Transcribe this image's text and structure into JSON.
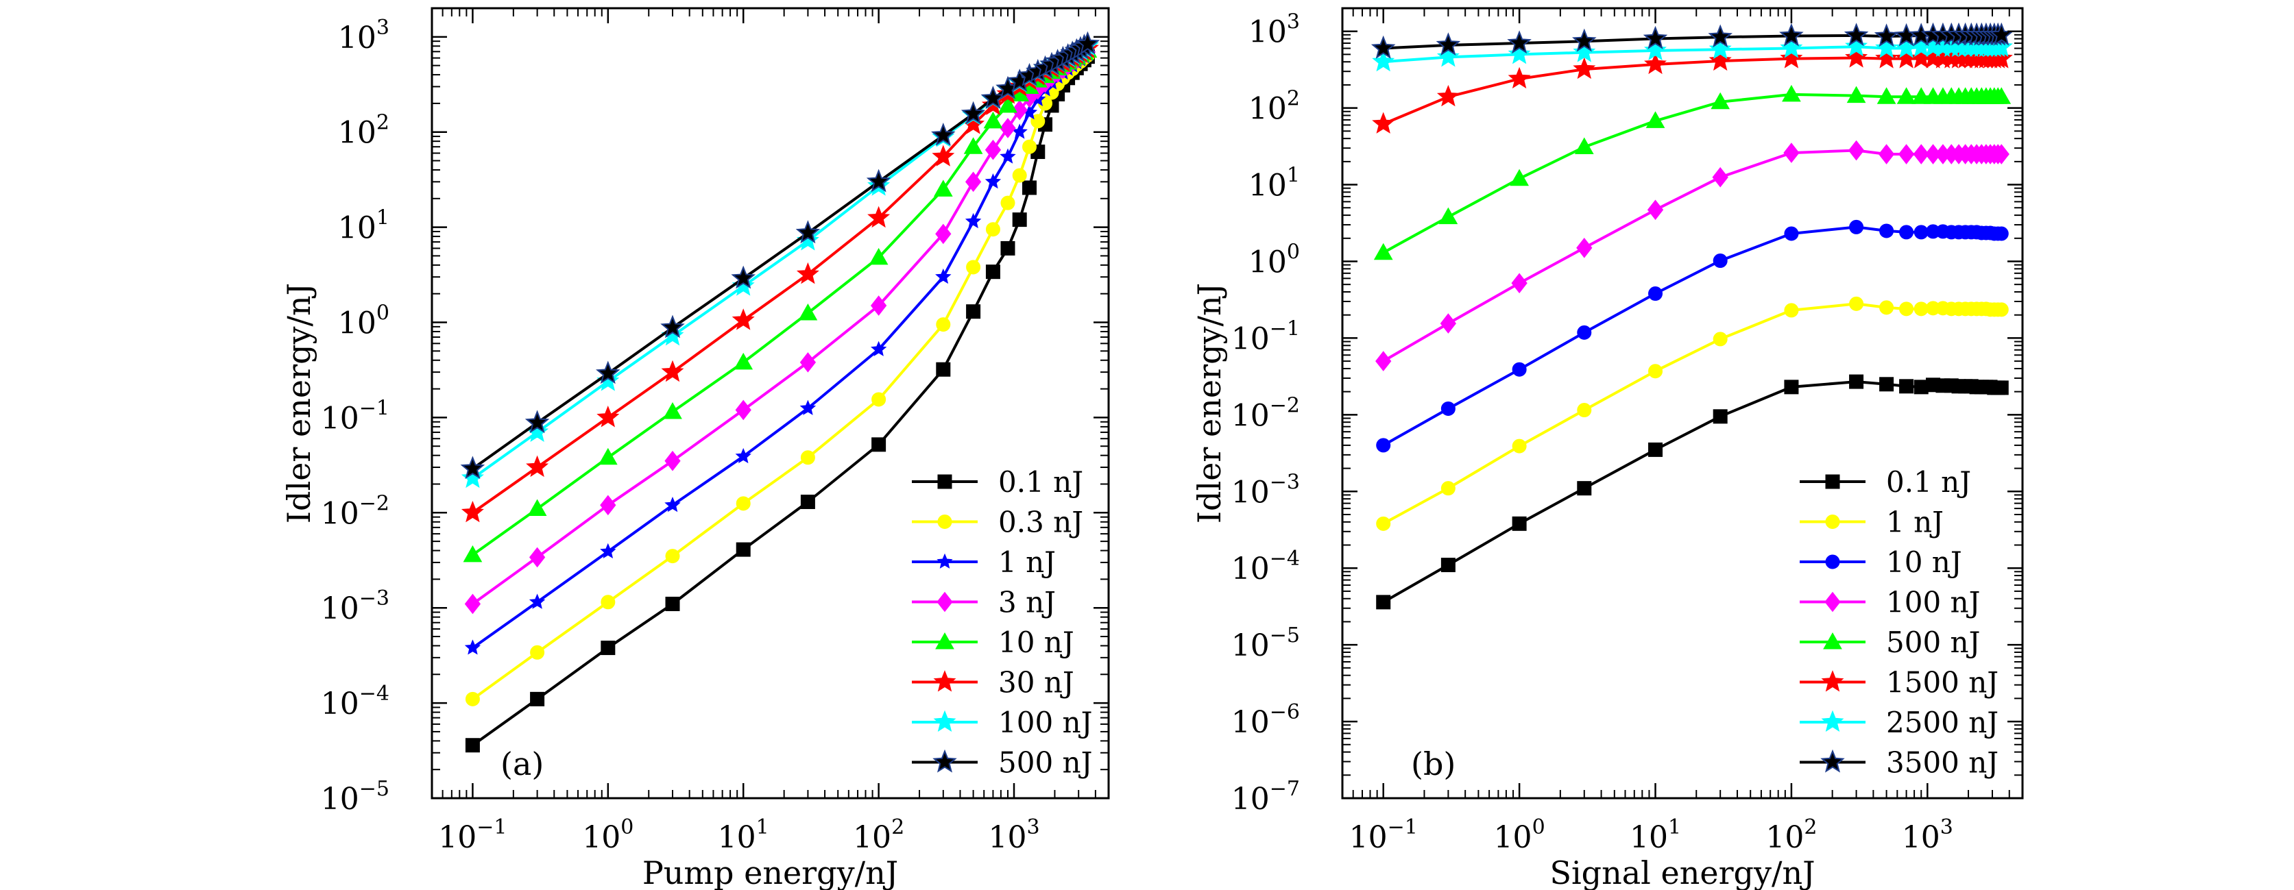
{
  "chart_data": [
    {
      "type": "line",
      "panel_label": "(a)",
      "xlabel": "Pump energy/nJ",
      "ylabel": "Idler energy/nJ",
      "x_scale": "log",
      "y_scale": "log",
      "xlim": [
        0.05,
        5000
      ],
      "ylim": [
        1e-05,
        2000
      ],
      "x_ticks": [
        {
          "exp": "−1",
          "v": 0.1
        },
        {
          "exp": "0",
          "v": 1
        },
        {
          "exp": "1",
          "v": 10
        },
        {
          "exp": "2",
          "v": 100
        },
        {
          "exp": "3",
          "v": 1000
        }
      ],
      "y_ticks": [
        {
          "exp": "−5",
          "v": 1e-05
        },
        {
          "exp": "−4",
          "v": 0.0001
        },
        {
          "exp": "−3",
          "v": 0.001
        },
        {
          "exp": "−2",
          "v": 0.01
        },
        {
          "exp": "−1",
          "v": 0.1
        },
        {
          "exp": "0",
          "v": 1
        },
        {
          "exp": "1",
          "v": 10
        },
        {
          "exp": "2",
          "v": 100
        },
        {
          "exp": "3",
          "v": 1000
        }
      ],
      "tick_base": "10",
      "grid": false,
      "legend_position": "bottom-right",
      "x": [
        0.1,
        0.3,
        1,
        3,
        10,
        30,
        100,
        300,
        500,
        700,
        900,
        1100,
        1300,
        1500,
        1700,
        1900,
        2100,
        2300,
        2500,
        2700,
        2900,
        3100,
        3300,
        3500
      ],
      "series": [
        {
          "name": "0.1 nJ",
          "color": "#000000",
          "marker": "square",
          "values": [
            3.6e-05,
            0.00011,
            0.00038,
            0.0011,
            0.0041,
            0.013,
            0.052,
            0.32,
            1.3,
            3.4,
            6.0,
            12,
            26,
            62,
            120,
            190,
            250,
            310,
            370,
            420,
            470,
            520,
            570,
            620
          ]
        },
        {
          "name": "0.3 nJ",
          "color": "#ffff00",
          "marker": "circle",
          "values": [
            0.00011,
            0.00034,
            0.00115,
            0.0035,
            0.0125,
            0.038,
            0.155,
            0.95,
            3.8,
            9.5,
            18,
            35,
            70,
            130,
            200,
            260,
            320,
            370,
            420,
            460,
            510,
            550,
            600,
            640
          ]
        },
        {
          "name": "1 nJ",
          "color": "#0000ff",
          "marker": "smallstar",
          "values": [
            0.00038,
            0.00115,
            0.0039,
            0.012,
            0.039,
            0.125,
            0.52,
            3.0,
            11.5,
            30,
            55,
            100,
            160,
            220,
            280,
            330,
            380,
            420,
            460,
            500,
            540,
            580,
            620,
            660
          ]
        },
        {
          "name": "3 nJ",
          "color": "#ff00ff",
          "marker": "diamond",
          "values": [
            0.0011,
            0.0034,
            0.012,
            0.035,
            0.12,
            0.38,
            1.5,
            8.5,
            30,
            65,
            110,
            170,
            230,
            280,
            330,
            380,
            420,
            460,
            500,
            540,
            580,
            610,
            650,
            690
          ]
        },
        {
          "name": "10 nJ",
          "color": "#00ff00",
          "marker": "triangle",
          "values": [
            0.0036,
            0.011,
            0.038,
            0.115,
            0.38,
            1.25,
            4.8,
            25,
            70,
            130,
            190,
            250,
            300,
            350,
            390,
            430,
            470,
            510,
            540,
            580,
            610,
            650,
            680,
            720
          ]
        },
        {
          "name": "30 nJ",
          "color": "#ff0000",
          "marker": "star",
          "values": [
            0.01,
            0.03,
            0.1,
            0.3,
            1.05,
            3.2,
            12.5,
            55,
            120,
            190,
            250,
            300,
            350,
            390,
            430,
            470,
            510,
            540,
            580,
            610,
            650,
            680,
            710,
            750
          ]
        },
        {
          "name": "100 nJ",
          "color": "#00ffff",
          "marker": "star",
          "values": [
            0.023,
            0.07,
            0.24,
            0.72,
            2.4,
            7.2,
            27,
            88,
            150,
            220,
            280,
            330,
            380,
            420,
            460,
            500,
            540,
            580,
            610,
            650,
            690,
            720,
            760,
            800
          ]
        },
        {
          "name": "500 nJ",
          "color": "#000000",
          "marker": "star",
          "values": [
            0.029,
            0.088,
            0.29,
            0.88,
            2.9,
            8.7,
            30,
            92,
            155,
            225,
            285,
            340,
            390,
            430,
            470,
            510,
            550,
            590,
            630,
            670,
            710,
            750,
            790,
            840
          ]
        }
      ]
    },
    {
      "type": "line",
      "panel_label": "(b)",
      "xlabel": "Signal energy/nJ",
      "ylabel": "Idler energy/nJ",
      "x_scale": "log",
      "y_scale": "log",
      "xlim": [
        0.05,
        5000
      ],
      "ylim": [
        1e-07,
        2000
      ],
      "x_ticks": [
        {
          "exp": "−1",
          "v": 0.1
        },
        {
          "exp": "0",
          "v": 1
        },
        {
          "exp": "1",
          "v": 10
        },
        {
          "exp": "2",
          "v": 100
        },
        {
          "exp": "3",
          "v": 1000
        }
      ],
      "y_ticks": [
        {
          "exp": "−7",
          "v": 1e-07
        },
        {
          "exp": "−6",
          "v": 1e-06
        },
        {
          "exp": "−5",
          "v": 1e-05
        },
        {
          "exp": "−4",
          "v": 0.0001
        },
        {
          "exp": "−3",
          "v": 0.001
        },
        {
          "exp": "−2",
          "v": 0.01
        },
        {
          "exp": "−1",
          "v": 0.1
        },
        {
          "exp": "0",
          "v": 1
        },
        {
          "exp": "1",
          "v": 10
        },
        {
          "exp": "2",
          "v": 100
        },
        {
          "exp": "3",
          "v": 1000
        }
      ],
      "tick_base": "10",
      "grid": false,
      "legend_position": "bottom-right",
      "x": [
        0.1,
        0.3,
        1,
        3,
        10,
        30,
        100,
        300,
        500,
        700,
        900,
        1100,
        1300,
        1500,
        1700,
        1900,
        2100,
        2300,
        2500,
        2700,
        2900,
        3100,
        3300,
        3500
      ],
      "series": [
        {
          "name": "0.1 nJ",
          "color": "#000000",
          "marker": "square",
          "values": [
            3.6e-05,
            0.00011,
            0.00038,
            0.0011,
            0.0035,
            0.0095,
            0.023,
            0.027,
            0.025,
            0.0235,
            0.023,
            0.0245,
            0.024,
            0.024,
            0.0235,
            0.0235,
            0.0235,
            0.023,
            0.023,
            0.023,
            0.023,
            0.0225,
            0.0225,
            0.0225
          ]
        },
        {
          "name": "1 nJ",
          "color": "#ffff00",
          "marker": "circle",
          "values": [
            0.00038,
            0.0011,
            0.0039,
            0.0115,
            0.037,
            0.097,
            0.23,
            0.28,
            0.25,
            0.24,
            0.24,
            0.245,
            0.245,
            0.24,
            0.24,
            0.24,
            0.24,
            0.24,
            0.24,
            0.24,
            0.235,
            0.235,
            0.235,
            0.235
          ]
        },
        {
          "name": "10 nJ",
          "color": "#0000ff",
          "marker": "circle",
          "values": [
            0.004,
            0.012,
            0.039,
            0.118,
            0.38,
            1.02,
            2.3,
            2.8,
            2.5,
            2.4,
            2.4,
            2.45,
            2.45,
            2.4,
            2.4,
            2.4,
            2.4,
            2.4,
            2.35,
            2.35,
            2.35,
            2.3,
            2.3,
            2.3
          ]
        },
        {
          "name": "100 nJ",
          "color": "#ff00ff",
          "marker": "diamond",
          "values": [
            0.05,
            0.155,
            0.52,
            1.5,
            4.7,
            12.5,
            26,
            28,
            25,
            25,
            25,
            25,
            25,
            25,
            25,
            25,
            25,
            25,
            25,
            25,
            25,
            25,
            25,
            25
          ]
        },
        {
          "name": "500 nJ",
          "color": "#00ff00",
          "marker": "triangle",
          "values": [
            1.3,
            3.8,
            12,
            31,
            68,
            120,
            150,
            145,
            140,
            140,
            140,
            140,
            140,
            140,
            140,
            140,
            140,
            140,
            140,
            140,
            140,
            140,
            140,
            140
          ]
        },
        {
          "name": "1500 nJ",
          "color": "#ff0000",
          "marker": "star",
          "values": [
            62,
            140,
            240,
            320,
            370,
            410,
            440,
            450,
            440,
            440,
            440,
            440,
            440,
            440,
            440,
            440,
            440,
            440,
            440,
            440,
            440,
            440,
            440,
            440
          ]
        },
        {
          "name": "2500 nJ",
          "color": "#00ffff",
          "marker": "star",
          "values": [
            400,
            460,
            500,
            530,
            560,
            580,
            600,
            630,
            600,
            600,
            620,
            620,
            620,
            620,
            620,
            620,
            620,
            620,
            620,
            620,
            620,
            620,
            620,
            620
          ]
        },
        {
          "name": "3500 nJ",
          "color": "#000000",
          "marker": "star",
          "values": [
            600,
            660,
            700,
            740,
            800,
            840,
            870,
            880,
            860,
            870,
            880,
            890,
            890,
            890,
            890,
            890,
            890,
            890,
            890,
            890,
            890,
            890,
            890,
            890
          ]
        }
      ]
    }
  ]
}
